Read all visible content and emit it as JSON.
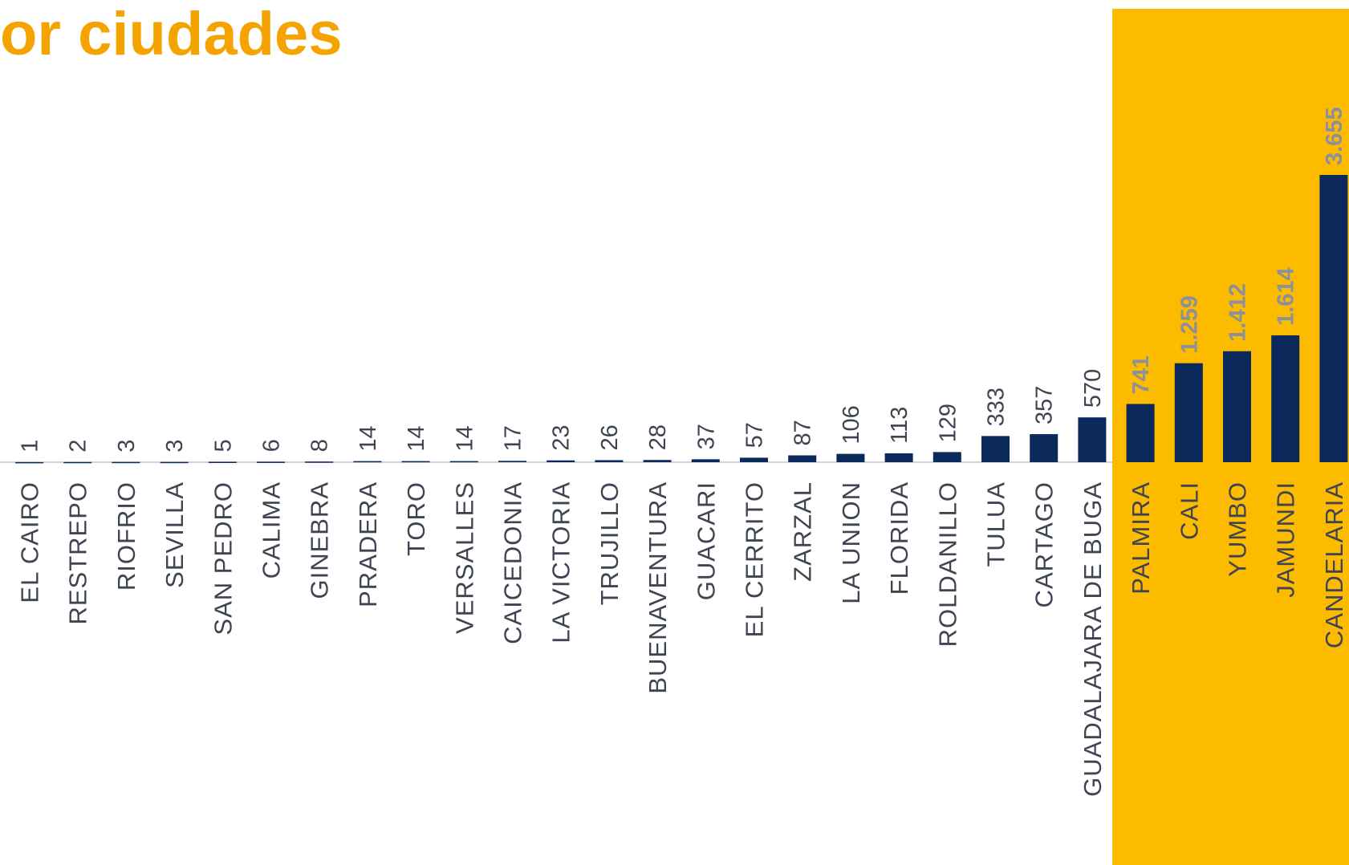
{
  "chart_data": {
    "type": "bar",
    "title": "or ciudades",
    "categories": [
      "EL CAIRO",
      "RESTREPO",
      "RIOFRIO",
      "SEVILLA",
      "SAN PEDRO",
      "CALIMA",
      "GINEBRA",
      "PRADERA",
      "TORO",
      "VERSALLES",
      "CAICEDONIA",
      "LA VICTORIA",
      "TRUJILLO",
      "BUENAVENTURA",
      "GUACARI",
      "EL CERRITO",
      "ZARZAL",
      "LA UNION",
      "FLORIDA",
      "ROLDANILLO",
      "TULUA",
      "CARTAGO",
      "GUADALAJARA DE BUGA",
      "PALMIRA",
      "CALI",
      "YUMBO",
      "JAMUNDI",
      "CANDELARIA"
    ],
    "values": [
      1,
      2,
      3,
      3,
      5,
      6,
      8,
      14,
      14,
      14,
      17,
      23,
      26,
      28,
      37,
      57,
      87,
      106,
      113,
      129,
      333,
      357,
      570,
      741,
      1259,
      1412,
      1614,
      3655
    ],
    "value_labels": [
      "1",
      "2",
      "3",
      "3",
      "5",
      "6",
      "8",
      "14",
      "14",
      "14",
      "17",
      "23",
      "26",
      "28",
      "37",
      "57",
      "87",
      "106",
      "113",
      "129",
      "333",
      "357",
      "570",
      "741",
      "1.259",
      "1.412",
      "1.614",
      "3.655"
    ],
    "color": "#0b2a5b"
  }
}
